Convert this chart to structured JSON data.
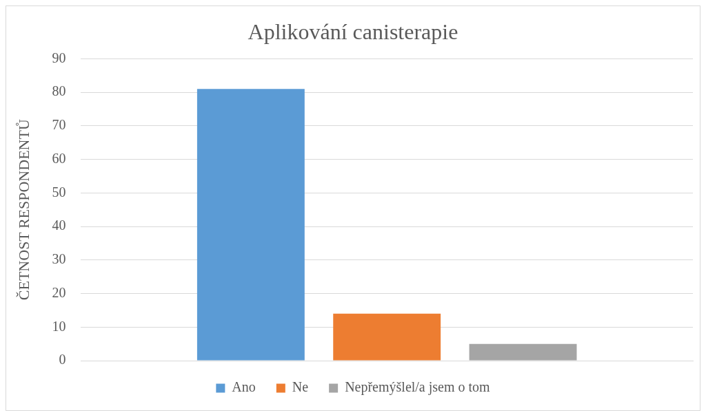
{
  "chart_data": {
    "type": "bar",
    "title": "Aplikování canisterapie",
    "ylabel": "ČETNOST RESPONDENTŮ",
    "categories": [
      null
    ],
    "series": [
      {
        "name": "Ano",
        "color": "#5b9bd5",
        "values": [
          81
        ]
      },
      {
        "name": "Ne",
        "color": "#ed7d31",
        "values": [
          14
        ]
      },
      {
        "name": "Nepřemýšlel/a jsem o tom",
        "color": "#a5a5a5",
        "values": [
          5
        ]
      }
    ],
    "ylim": [
      0,
      90
    ],
    "yticks": [
      0,
      10,
      20,
      30,
      40,
      50,
      60,
      70,
      80,
      90
    ],
    "grid": "y",
    "legend": "bottom"
  }
}
